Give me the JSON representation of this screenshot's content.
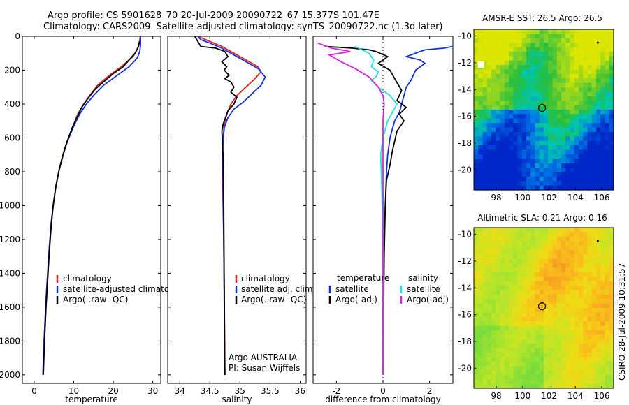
{
  "header": {
    "line1": "Argo profile: CS 5901628_70 20-Jul-2009 20090722_67 15.377S 101.47E",
    "line2": "Climatology: CARS2009. Satellite-adjusted climatology: synTS_20090722.nc (1.3d later)"
  },
  "credit": "CSIRO 28-Jul-2009 10:31:57",
  "colors": {
    "red": "#e02020",
    "blue": "#1030e0",
    "black": "#000000",
    "cyan": "#20e0e0",
    "magenta": "#e020e0"
  },
  "chart_data": [
    {
      "id": "temperature",
      "type": "line",
      "xlabel": "temperature",
      "ylabel": "",
      "xlim": [
        -3,
        32
      ],
      "ylim": [
        2050,
        0
      ],
      "xticks": [
        0,
        10,
        20,
        30
      ],
      "yticks": [
        0,
        200,
        400,
        600,
        800,
        1000,
        1200,
        1400,
        1600,
        1800,
        2000
      ],
      "show_yticklabels": true,
      "legend": {
        "position": "bottom-left",
        "entries": [
          {
            "label": "climatology",
            "color": "#e02020"
          },
          {
            "label": "satellite-adjusted climatology",
            "color": "#1030e0"
          },
          {
            "label": "Argo(..raw -QC)",
            "color": "#000000"
          }
        ]
      },
      "series": [
        {
          "name": "climatology",
          "color": "#e02020",
          "x": [
            26.8,
            26.6,
            26.0,
            25.0,
            22.0,
            19.0,
            16.0,
            14.0,
            12.5,
            11.0,
            10.0,
            9.0,
            8.0,
            7.0,
            6.2,
            5.4,
            4.8,
            4.3,
            3.8,
            3.4,
            3.0,
            2.7,
            2.4,
            2.2
          ],
          "y": [
            0,
            40,
            80,
            120,
            180,
            230,
            290,
            350,
            400,
            460,
            520,
            580,
            640,
            720,
            800,
            900,
            1000,
            1100,
            1250,
            1400,
            1550,
            1700,
            1850,
            2000
          ]
        },
        {
          "name": "satellite-adjusted climatology",
          "color": "#1030e0",
          "x": [
            26.9,
            26.9,
            26.7,
            26.0,
            24.0,
            21.0,
            17.5,
            15.0,
            13.2,
            11.5,
            10.2,
            9.1,
            8.1,
            7.1,
            6.2,
            5.4,
            4.8,
            4.3,
            3.8,
            3.4,
            3.0,
            2.7,
            2.4,
            2.2
          ],
          "y": [
            0,
            50,
            90,
            130,
            180,
            230,
            290,
            350,
            400,
            460,
            520,
            580,
            640,
            720,
            800,
            900,
            1000,
            1100,
            1250,
            1400,
            1550,
            1700,
            1850,
            2000
          ]
        },
        {
          "name": "Argo(..raw -QC)",
          "color": "#000000",
          "x": [
            26.6,
            26.4,
            25.5,
            24.0,
            22.5,
            20.0,
            18.0,
            15.5,
            13.5,
            12.0,
            10.8,
            9.6,
            8.5,
            7.4,
            6.4,
            5.5,
            4.8,
            4.3,
            3.8,
            3.4,
            3.0,
            2.6,
            2.3
          ],
          "y": [
            30,
            60,
            100,
            140,
            180,
            220,
            260,
            310,
            370,
            420,
            480,
            540,
            610,
            690,
            780,
            880,
            1000,
            1120,
            1280,
            1440,
            1600,
            1800,
            2000
          ]
        }
      ]
    },
    {
      "id": "salinity",
      "type": "line",
      "xlabel": "salinity",
      "ylabel": "",
      "xlim": [
        33.8,
        36.1
      ],
      "ylim": [
        2050,
        0
      ],
      "xticks": [
        34,
        34.5,
        35,
        35.5,
        36
      ],
      "yticks": [
        0,
        200,
        400,
        600,
        800,
        1000,
        1200,
        1400,
        1600,
        1800,
        2000
      ],
      "show_yticklabels": false,
      "legend": {
        "position": "bottom-right",
        "entries": [
          {
            "label": "climatology",
            "color": "#e02020"
          },
          {
            "label": "satellite adj. clim.",
            "color": "#1030e0"
          },
          {
            "label": "Argo(..raw -QC)",
            "color": "#000000"
          }
        ]
      },
      "annotations": [
        "Argo AUSTRALIA",
        "PI: Susan Wijffels"
      ],
      "series": [
        {
          "name": "climatology",
          "color": "#e02020",
          "x": [
            34.3,
            34.5,
            34.7,
            34.9,
            35.1,
            35.3,
            35.35,
            35.25,
            35.1,
            34.95,
            34.85,
            34.78,
            34.74,
            34.72,
            34.71,
            34.71,
            34.72,
            34.73,
            34.74,
            34.74,
            34.75
          ],
          "y": [
            0,
            30,
            60,
            100,
            140,
            180,
            210,
            250,
            300,
            350,
            400,
            460,
            520,
            600,
            700,
            800,
            1000,
            1200,
            1500,
            1800,
            2000
          ]
        },
        {
          "name": "satellite adj. clim.",
          "color": "#1030e0",
          "x": [
            34.3,
            34.35,
            34.5,
            34.7,
            34.9,
            35.1,
            35.3,
            35.42,
            35.35,
            35.2,
            35.05,
            34.9,
            34.8,
            34.74,
            34.72,
            34.71,
            34.72,
            34.73,
            34.74,
            34.75
          ],
          "y": [
            0,
            20,
            40,
            70,
            110,
            150,
            190,
            240,
            290,
            340,
            390,
            430,
            480,
            540,
            620,
            700,
            900,
            1200,
            1600,
            2000
          ]
        },
        {
          "name": "Argo(..raw -QC)",
          "color": "#000000",
          "x": [
            34.25,
            34.3,
            34.35,
            34.6,
            34.75,
            34.8,
            34.7,
            34.78,
            34.74,
            34.82,
            34.75,
            34.85,
            34.9,
            34.85,
            34.95,
            34.9,
            34.8,
            34.76,
            34.72,
            34.7,
            34.71,
            34.72,
            34.73,
            34.74,
            34.75
          ],
          "y": [
            0,
            30,
            60,
            70,
            90,
            120,
            150,
            180,
            200,
            230,
            250,
            270,
            300,
            330,
            360,
            400,
            440,
            480,
            520,
            560,
            620,
            700,
            1000,
            1500,
            2000
          ]
        }
      ]
    },
    {
      "id": "difference",
      "type": "line",
      "xlabel": "difference from climatology",
      "ylabel": "",
      "xlim": [
        -3,
        3
      ],
      "ylim": [
        2050,
        0
      ],
      "xticks": [
        -2,
        0,
        2
      ],
      "yticks": [
        0,
        200,
        400,
        600,
        800,
        1000,
        1200,
        1400,
        1600,
        1800,
        2000
      ],
      "show_yticklabels": false,
      "legend": {
        "position": "bottom",
        "columns": [
          {
            "heading": "temperature",
            "entries": [
              {
                "label": "satellite",
                "color": "#1030e0"
              },
              {
                "label": "Argo(-adj)",
                "color": "#000000"
              }
            ]
          },
          {
            "heading": "salinity",
            "entries": [
              {
                "label": "satellite",
                "color": "#20e0e0"
              },
              {
                "label": "Argo(-adj)",
                "color": "#e020e0"
              }
            ]
          }
        ]
      },
      "series": [
        {
          "name": "temperature satellite",
          "color": "#1030e0",
          "x": [
            3.0,
            2.6,
            1.8,
            1.4,
            1.0,
            1.6,
            1.8,
            1.4,
            1.2,
            1.0,
            0.9,
            0.8,
            0.7,
            0.5,
            0.4,
            0.3,
            0.2,
            0.15,
            0.1,
            0.05,
            0.0,
            0.0
          ],
          "y": [
            60,
            70,
            80,
            100,
            120,
            140,
            160,
            200,
            260,
            300,
            350,
            400,
            450,
            500,
            550,
            600,
            700,
            800,
            1000,
            1200,
            1600,
            2000
          ]
        },
        {
          "name": "temperature Argo(-adj)",
          "color": "#000000",
          "x": [
            -2.5,
            -1.3,
            -0.6,
            -0.3,
            0.2,
            -0.2,
            0.3,
            0.5,
            0.8,
            0.6,
            1.0,
            0.7,
            0.9,
            0.6,
            0.5,
            0.4,
            0.3,
            0.15,
            0.1,
            0.05,
            0.0
          ],
          "y": [
            60,
            70,
            80,
            90,
            120,
            160,
            200,
            250,
            320,
            380,
            420,
            460,
            500,
            560,
            620,
            680,
            760,
            850,
            1000,
            1300,
            2000
          ]
        },
        {
          "name": "salinity satellite",
          "color": "#20e0e0",
          "x": [
            -1.2,
            -0.6,
            -0.4,
            -0.5,
            -0.2,
            -0.3,
            -0.5,
            -0.2,
            0.3,
            0.6,
            0.2,
            0.0,
            -0.1,
            -0.05,
            0.0,
            0.0
          ],
          "y": [
            60,
            100,
            140,
            180,
            210,
            240,
            260,
            300,
            350,
            400,
            500,
            600,
            700,
            900,
            1200,
            2000
          ]
        },
        {
          "name": "salinity Argo(-adj)",
          "color": "#e020e0",
          "x": [
            -2.8,
            -2.2,
            -1.4,
            -2.3,
            -1.8,
            -1.2,
            -0.6,
            -0.2,
            0.0,
            0.05,
            0.02,
            0.0,
            0.0,
            0.0
          ],
          "y": [
            40,
            70,
            90,
            110,
            150,
            190,
            240,
            300,
            350,
            400,
            450,
            500,
            800,
            2000
          ]
        }
      ]
    }
  ],
  "maps": [
    {
      "id": "sst",
      "title": "AMSR-E SST: 26.5 Argo: 26.5",
      "xticks": [
        98,
        100,
        102,
        104,
        106
      ],
      "yticks": [
        -10,
        -12,
        -14,
        -16,
        -18,
        -20
      ]
    },
    {
      "id": "sla",
      "title": "Altimetric SLA: 0.21 Argo: 0.16",
      "xticks": [
        98,
        100,
        102,
        104,
        106
      ],
      "yticks": [
        -10,
        -12,
        -14,
        -16,
        -18,
        -20
      ]
    }
  ]
}
